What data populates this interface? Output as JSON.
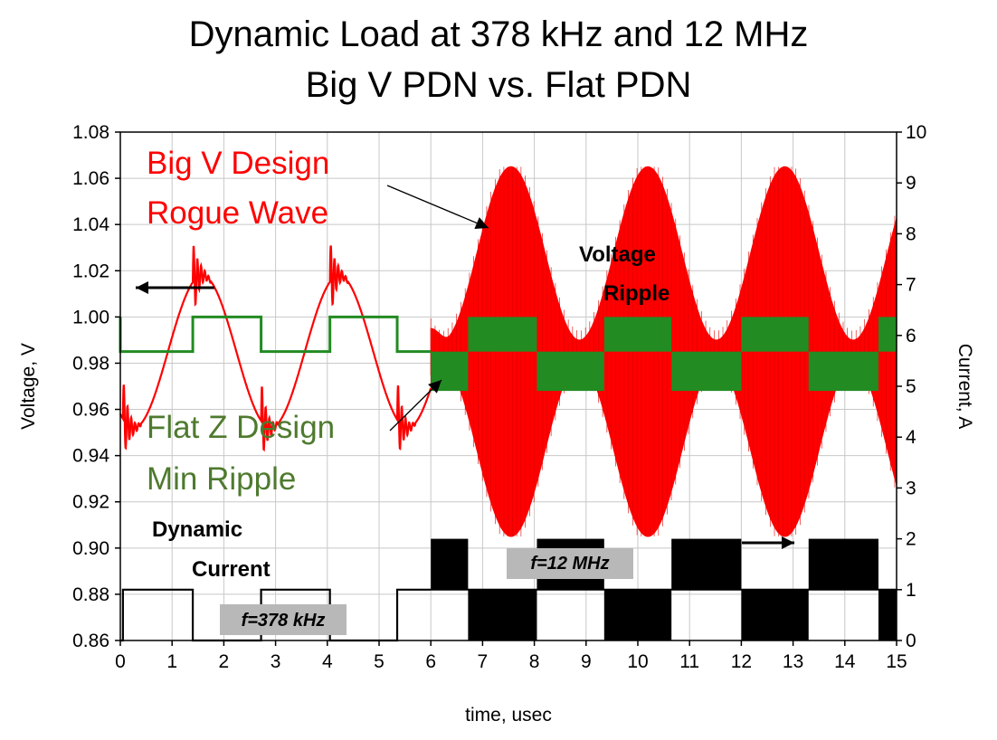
{
  "chart_data": {
    "type": "line",
    "title": "Dynamic Load at 378 kHz and 12 MHz",
    "subtitle": "Big V PDN vs. Flat PDN",
    "xlabel": "time, usec",
    "ylabel_left": "Voltage, V",
    "ylabel_right": "Current, A",
    "xlim": [
      0,
      15
    ],
    "ylim_left": [
      0.86,
      1.08
    ],
    "ylim_right": [
      0,
      10
    ],
    "x_ticks": [
      "0",
      "1",
      "2",
      "3",
      "4",
      "5",
      "6",
      "7",
      "8",
      "9",
      "10",
      "11",
      "12",
      "13",
      "14",
      "15"
    ],
    "y_left_ticks": [
      "0.86",
      "0.88",
      "0.90",
      "0.92",
      "0.94",
      "0.96",
      "0.98",
      "1.00",
      "1.02",
      "1.04",
      "1.06",
      "1.08"
    ],
    "y_right_ticks": [
      "0",
      "1",
      "2",
      "3",
      "4",
      "5",
      "6",
      "7",
      "8",
      "9",
      "10"
    ],
    "grid": true,
    "series": [
      {
        "name": "Big V Design",
        "color": "#ff0000",
        "axis": "left",
        "description_points": {
          "low_freq_segment": {
            "x_range": [
              0,
              6
            ],
            "center": 0.985,
            "amplitude": 0.033,
            "period_us": 2.645
          },
          "high_freq_segment": {
            "x_range": [
              6,
              15
            ],
            "center": 0.985,
            "envelope_max": 1.065,
            "envelope_min": 0.905,
            "beat_period_us": 2.645
          }
        }
      },
      {
        "name": "Flat Z Design",
        "color": "#228b22",
        "axis": "left",
        "levels": {
          "high": 1.0,
          "low": 0.985
        },
        "low_freq_segment": {
          "x_range": [
            0,
            6
          ]
        },
        "high_freq_segment": {
          "x_range": [
            6,
            15
          ],
          "band_low": [
            0.968,
            0.985
          ],
          "band_high": [
            0.985,
            1.0
          ]
        }
      },
      {
        "name": "Dynamic Current",
        "color": "#000000",
        "axis": "right",
        "levels": {
          "high": 1,
          "low": 0
        },
        "low_freq_segment": {
          "x_range": [
            0,
            6
          ],
          "frequency": "378 kHz"
        },
        "high_freq_segment": {
          "x_range": [
            6,
            15
          ],
          "frequency": "12 MHz",
          "band_high": [
            1,
            2
          ],
          "band_low": [
            0,
            1
          ]
        }
      }
    ],
    "annotations": {
      "big_v_line1": "Big V Design",
      "big_v_line2": "Rogue Wave",
      "flat_line1": "Flat Z Design",
      "flat_line2": "Min Ripple",
      "voltage_line1": "Voltage",
      "voltage_line2": "Ripple",
      "current_line1": "Dynamic",
      "current_line2": "Current",
      "freq_low": "f=378 kHz",
      "freq_high": "f=12 MHz"
    },
    "colors": {
      "big_v": "#ff0000",
      "flat": "#228b22",
      "current": "#000000",
      "flat_text": "#4e7a2e"
    }
  }
}
